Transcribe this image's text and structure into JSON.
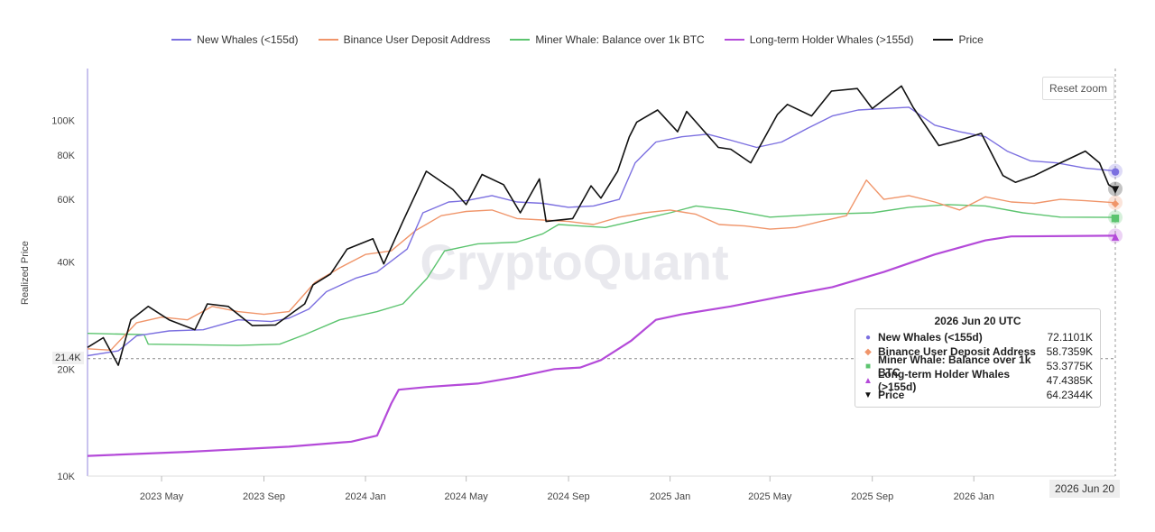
{
  "chart_data": {
    "type": "line",
    "ylabel": "Realized Price",
    "yscale": "log",
    "ylim": [
      10000,
      140000
    ],
    "yticks": [
      {
        "v": 10000,
        "label": "10K"
      },
      {
        "v": 20000,
        "label": "20K"
      },
      {
        "v": 40000,
        "label": "40K"
      },
      {
        "v": 60000,
        "label": "60K"
      },
      {
        "v": 80000,
        "label": "80K"
      },
      {
        "v": 100000,
        "label": "100K"
      }
    ],
    "xlim": [
      "2023-02-01",
      "2026-06-20"
    ],
    "xticks": [
      {
        "date": "2023-05-01",
        "label": "2023 May"
      },
      {
        "date": "2023-09-01",
        "label": "2023 Sep"
      },
      {
        "date": "2024-01-01",
        "label": "2024 Jan"
      },
      {
        "date": "2024-05-01",
        "label": "2024 May"
      },
      {
        "date": "2024-09-01",
        "label": "2024 Sep"
      },
      {
        "date": "2025-01-01",
        "label": "2025 Jan"
      },
      {
        "date": "2025-05-01",
        "label": "2025 May"
      },
      {
        "date": "2025-09-01",
        "label": "2025 Sep"
      },
      {
        "date": "2026-01-01",
        "label": "2026 Jan"
      }
    ],
    "crosshair": {
      "date_label": "2026 Jun 20",
      "price_label": "21.4K",
      "price": 21400
    },
    "series": [
      {
        "name": "New Whales (<155d)",
        "color": "#7b6fe0",
        "marker": "●",
        "value": 72110,
        "points": [
          [
            "2023-02-01",
            21800
          ],
          [
            "2023-03-10",
            22500
          ],
          [
            "2023-04-01",
            24800
          ],
          [
            "2023-05-10",
            25600
          ],
          [
            "2023-06-20",
            25800
          ],
          [
            "2023-08-01",
            27500
          ],
          [
            "2023-09-10",
            27200
          ],
          [
            "2023-10-01",
            27800
          ],
          [
            "2023-10-25",
            29500
          ],
          [
            "2023-11-15",
            33000
          ],
          [
            "2023-12-20",
            36000
          ],
          [
            "2024-01-15",
            37500
          ],
          [
            "2024-02-20",
            43500
          ],
          [
            "2024-03-10",
            55000
          ],
          [
            "2024-04-10",
            59000
          ],
          [
            "2024-05-01",
            59500
          ],
          [
            "2024-06-01",
            61500
          ],
          [
            "2024-07-01",
            59000
          ],
          [
            "2024-08-01",
            58500
          ],
          [
            "2024-09-01",
            57000
          ],
          [
            "2024-10-01",
            57500
          ],
          [
            "2024-11-01",
            60000
          ],
          [
            "2024-11-20",
            76000
          ],
          [
            "2024-12-15",
            87000
          ],
          [
            "2025-01-15",
            90000
          ],
          [
            "2025-02-15",
            91500
          ],
          [
            "2025-03-15",
            88000
          ],
          [
            "2025-04-15",
            84000
          ],
          [
            "2025-05-15",
            87000
          ],
          [
            "2025-06-15",
            95000
          ],
          [
            "2025-07-15",
            103000
          ],
          [
            "2025-08-15",
            107000
          ],
          [
            "2025-09-15",
            108000
          ],
          [
            "2025-10-15",
            109000
          ],
          [
            "2025-11-15",
            97000
          ],
          [
            "2025-12-15",
            93000
          ],
          [
            "2026-01-15",
            90000
          ],
          [
            "2026-02-10",
            82000
          ],
          [
            "2026-03-10",
            77000
          ],
          [
            "2026-04-10",
            76000
          ],
          [
            "2026-05-15",
            73500
          ],
          [
            "2026-06-20",
            72110
          ]
        ]
      },
      {
        "name": "Binance User Deposit Address",
        "color": "#f0956a",
        "marker": "◆",
        "value": 58736,
        "points": [
          [
            "2023-02-01",
            22800
          ],
          [
            "2023-03-01",
            22600
          ],
          [
            "2023-04-01",
            27000
          ],
          [
            "2023-05-01",
            28000
          ],
          [
            "2023-06-01",
            27500
          ],
          [
            "2023-07-01",
            30000
          ],
          [
            "2023-08-01",
            29000
          ],
          [
            "2023-09-01",
            28500
          ],
          [
            "2023-10-01",
            29000
          ],
          [
            "2023-11-01",
            35000
          ],
          [
            "2023-12-01",
            38500
          ],
          [
            "2024-01-01",
            42000
          ],
          [
            "2024-02-01",
            43000
          ],
          [
            "2024-03-01",
            49000
          ],
          [
            "2024-04-01",
            54000
          ],
          [
            "2024-05-01",
            55500
          ],
          [
            "2024-06-01",
            56000
          ],
          [
            "2024-07-01",
            53000
          ],
          [
            "2024-08-01",
            52500
          ],
          [
            "2024-09-01",
            52000
          ],
          [
            "2024-10-01",
            51000
          ],
          [
            "2024-11-01",
            53500
          ],
          [
            "2024-12-01",
            55000
          ],
          [
            "2025-01-01",
            56000
          ],
          [
            "2025-02-01",
            54500
          ],
          [
            "2025-03-01",
            51000
          ],
          [
            "2025-04-01",
            50500
          ],
          [
            "2025-05-01",
            49500
          ],
          [
            "2025-06-01",
            50000
          ],
          [
            "2025-07-01",
            52000
          ],
          [
            "2025-08-01",
            54000
          ],
          [
            "2025-08-25",
            68000
          ],
          [
            "2025-09-15",
            60000
          ],
          [
            "2025-10-15",
            61500
          ],
          [
            "2025-11-15",
            59000
          ],
          [
            "2025-12-15",
            56000
          ],
          [
            "2026-01-15",
            61000
          ],
          [
            "2026-02-15",
            59000
          ],
          [
            "2026-03-15",
            58500
          ],
          [
            "2026-04-15",
            60000
          ],
          [
            "2026-05-15",
            59500
          ],
          [
            "2026-06-20",
            58736
          ]
        ]
      },
      {
        "name": "Miner Whale: Balance over 1k BTC",
        "color": "#5cc46f",
        "marker": "■",
        "value": 53378,
        "points": [
          [
            "2023-02-01",
            25200
          ],
          [
            "2023-04-10",
            25000
          ],
          [
            "2023-04-15",
            23500
          ],
          [
            "2023-08-01",
            23300
          ],
          [
            "2023-09-20",
            23500
          ],
          [
            "2023-10-20",
            25000
          ],
          [
            "2023-12-01",
            27500
          ],
          [
            "2024-01-15",
            29000
          ],
          [
            "2024-02-15",
            30500
          ],
          [
            "2024-03-15",
            36000
          ],
          [
            "2024-04-05",
            43000
          ],
          [
            "2024-05-15",
            45000
          ],
          [
            "2024-07-01",
            45500
          ],
          [
            "2024-08-01",
            48000
          ],
          [
            "2024-08-20",
            51000
          ],
          [
            "2024-10-15",
            50000
          ],
          [
            "2024-12-01",
            53000
          ],
          [
            "2025-01-01",
            55000
          ],
          [
            "2025-02-01",
            57500
          ],
          [
            "2025-03-15",
            56000
          ],
          [
            "2025-05-01",
            53500
          ],
          [
            "2025-07-01",
            54500
          ],
          [
            "2025-09-01",
            55000
          ],
          [
            "2025-10-15",
            57000
          ],
          [
            "2025-12-01",
            58000
          ],
          [
            "2026-01-15",
            57500
          ],
          [
            "2026-03-01",
            55000
          ],
          [
            "2026-04-15",
            53500
          ],
          [
            "2026-06-20",
            53378
          ]
        ]
      },
      {
        "name": "Long-term Holder Whales (>155d)",
        "color": "#b44ad9",
        "marker": "▲",
        "value": 47439,
        "points": [
          [
            "2023-02-01",
            11400
          ],
          [
            "2023-06-01",
            11700
          ],
          [
            "2023-10-01",
            12100
          ],
          [
            "2023-12-15",
            12500
          ],
          [
            "2024-01-15",
            13000
          ],
          [
            "2024-02-01",
            16000
          ],
          [
            "2024-02-10",
            17500
          ],
          [
            "2024-03-15",
            17800
          ],
          [
            "2024-05-15",
            18200
          ],
          [
            "2024-07-01",
            19000
          ],
          [
            "2024-08-15",
            20000
          ],
          [
            "2024-09-15",
            20200
          ],
          [
            "2024-10-10",
            21200
          ],
          [
            "2024-11-15",
            24000
          ],
          [
            "2024-12-15",
            27500
          ],
          [
            "2025-01-15",
            28500
          ],
          [
            "2025-03-15",
            30000
          ],
          [
            "2025-05-15",
            32000
          ],
          [
            "2025-07-15",
            34000
          ],
          [
            "2025-09-15",
            37500
          ],
          [
            "2025-11-15",
            42000
          ],
          [
            "2026-01-15",
            46000
          ],
          [
            "2026-02-15",
            47200
          ],
          [
            "2026-06-20",
            47439
          ]
        ]
      },
      {
        "name": "Price",
        "color": "#111111",
        "marker": "▼",
        "value": 64234,
        "points": [
          [
            "2023-02-01",
            23000
          ],
          [
            "2023-02-20",
            24500
          ],
          [
            "2023-03-10",
            20500
          ],
          [
            "2023-03-25",
            27500
          ],
          [
            "2023-04-15",
            30000
          ],
          [
            "2023-05-10",
            27500
          ],
          [
            "2023-06-10",
            25800
          ],
          [
            "2023-06-25",
            30500
          ],
          [
            "2023-07-20",
            30000
          ],
          [
            "2023-08-18",
            26500
          ],
          [
            "2023-09-15",
            26600
          ],
          [
            "2023-10-20",
            30500
          ],
          [
            "2023-10-30",
            34500
          ],
          [
            "2023-11-20",
            37000
          ],
          [
            "2023-12-10",
            43500
          ],
          [
            "2024-01-10",
            46500
          ],
          [
            "2024-01-23",
            39500
          ],
          [
            "2024-02-15",
            52000
          ],
          [
            "2024-03-14",
            72000
          ],
          [
            "2024-04-15",
            64000
          ],
          [
            "2024-05-01",
            58000
          ],
          [
            "2024-05-20",
            70500
          ],
          [
            "2024-06-15",
            66000
          ],
          [
            "2024-07-05",
            55000
          ],
          [
            "2024-07-28",
            68500
          ],
          [
            "2024-08-05",
            52000
          ],
          [
            "2024-09-06",
            53000
          ],
          [
            "2024-09-28",
            65500
          ],
          [
            "2024-10-10",
            60500
          ],
          [
            "2024-10-30",
            72000
          ],
          [
            "2024-11-13",
            90000
          ],
          [
            "2024-11-22",
            99000
          ],
          [
            "2024-12-17",
            107000
          ],
          [
            "2025-01-10",
            93000
          ],
          [
            "2025-01-21",
            106000
          ],
          [
            "2025-02-28",
            84000
          ],
          [
            "2025-03-15",
            83000
          ],
          [
            "2025-04-08",
            76000
          ],
          [
            "2025-05-10",
            104000
          ],
          [
            "2025-05-22",
            111000
          ],
          [
            "2025-06-20",
            103000
          ],
          [
            "2025-07-14",
            121000
          ],
          [
            "2025-08-14",
            123000
          ],
          [
            "2025-09-01",
            108000
          ],
          [
            "2025-10-06",
            125000
          ],
          [
            "2025-10-20",
            109000
          ],
          [
            "2025-11-20",
            85000
          ],
          [
            "2025-12-15",
            88000
          ],
          [
            "2026-01-10",
            92000
          ],
          [
            "2026-02-05",
            70000
          ],
          [
            "2026-02-20",
            67000
          ],
          [
            "2026-03-15",
            70000
          ],
          [
            "2026-04-10",
            75000
          ],
          [
            "2026-05-15",
            82000
          ],
          [
            "2026-06-01",
            76000
          ],
          [
            "2026-06-12",
            66000
          ],
          [
            "2026-06-20",
            64234
          ]
        ]
      }
    ]
  },
  "ui": {
    "reset_zoom": "Reset zoom",
    "watermark": "CryptoQuant",
    "tooltip": {
      "title": "2026 Jun 20 UTC",
      "rows": [
        {
          "name": "New Whales (<155d)",
          "value": "72.1101K"
        },
        {
          "name": "Binance User Deposit Address",
          "value": "58.7359K"
        },
        {
          "name": "Miner Whale: Balance over 1k BTC",
          "value": "53.3775K"
        },
        {
          "name": "Long-term Holder Whales (>155d)",
          "value": "47.4385K"
        },
        {
          "name": "Price",
          "value": "64.2344K"
        }
      ]
    }
  }
}
